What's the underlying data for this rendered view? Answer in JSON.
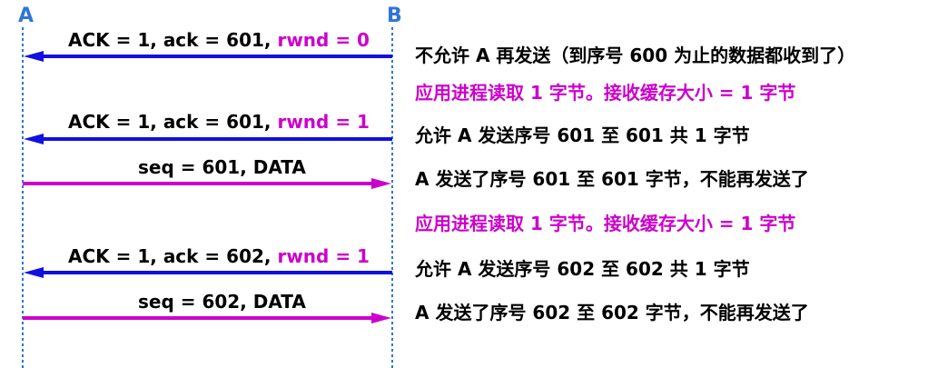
{
  "hosts": {
    "a": "A",
    "b": "B",
    "color": "#2E75D6"
  },
  "colors": {
    "ack_arrow": "#1010E0",
    "data_arrow": "#CC00CC",
    "highlight": "#CC00CC",
    "text": "#000000",
    "lifeline": "#2E75D6"
  },
  "messages": [
    {
      "direction": "B-to-A",
      "type": "ack",
      "label_main": "ACK = 1, ack = 601, ",
      "label_rwnd": "rwnd = 0"
    },
    {
      "direction": "B-to-A",
      "type": "ack",
      "label_main": "ACK = 1, ack = 601, ",
      "label_rwnd": "rwnd = 1"
    },
    {
      "direction": "A-to-B",
      "type": "data",
      "label_main": "seq = 601, DATA",
      "label_rwnd": ""
    },
    {
      "direction": "B-to-A",
      "type": "ack",
      "label_main": "ACK = 1, ack = 602, ",
      "label_rwnd": "rwnd = 1"
    },
    {
      "direction": "A-to-B",
      "type": "data",
      "label_main": "seq = 602, DATA",
      "label_rwnd": ""
    }
  ],
  "notes": [
    {
      "text": "不允许 A 再发送（到序号 600 为止的数据都收到了）",
      "style": "black"
    },
    {
      "text": "应用进程读取 1 字节。接收缓存大小 = 1 字节",
      "style": "magenta"
    },
    {
      "text": "允许 A 发送序号 601 至 601  共 1 字节",
      "style": "black"
    },
    {
      "text": "A 发送了序号 601 至 601 字节，不能再发送了",
      "style": "black"
    },
    {
      "text": "应用进程读取 1 字节。接收缓存大小 = 1 字节",
      "style": "magenta"
    },
    {
      "text": "允许 A 发送序号 602 至 602  共 1 字节",
      "style": "black"
    },
    {
      "text": "A 发送了序号 602 至 602 字节，不能再发送了",
      "style": "black"
    }
  ]
}
